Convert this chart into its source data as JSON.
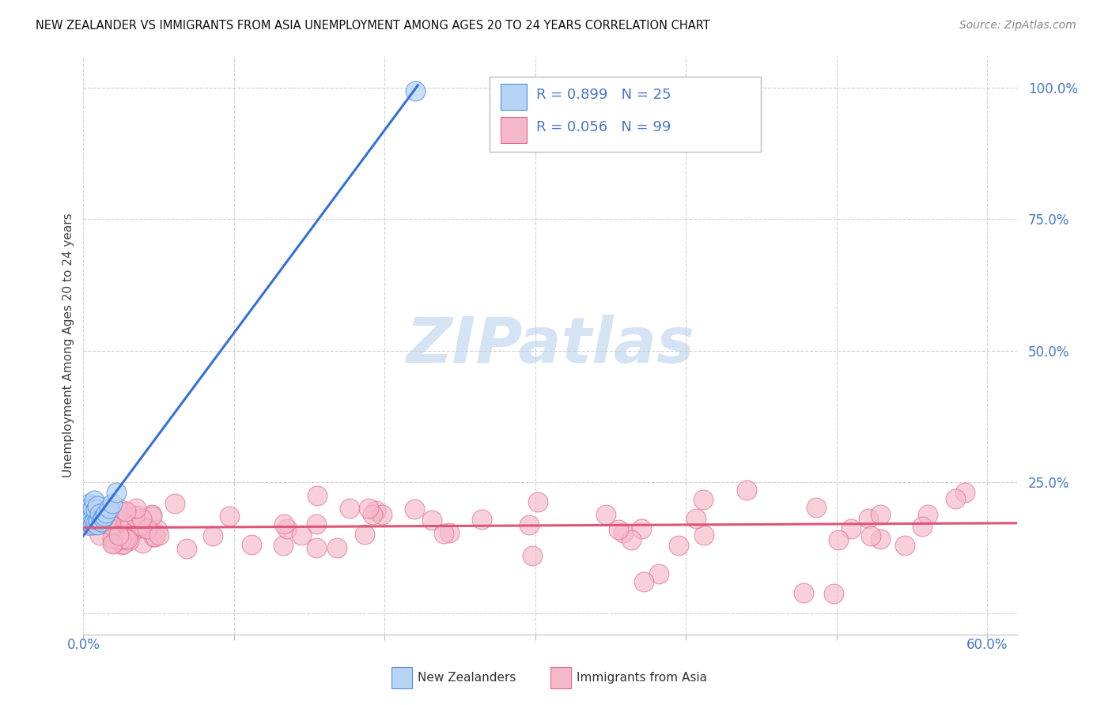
{
  "title": "NEW ZEALANDER VS IMMIGRANTS FROM ASIA UNEMPLOYMENT AMONG AGES 20 TO 24 YEARS CORRELATION CHART",
  "source": "Source: ZipAtlas.com",
  "ylabel": "Unemployment Among Ages 20 to 24 years",
  "xlim": [
    0.0,
    0.62
  ],
  "ylim": [
    -0.04,
    1.06
  ],
  "ytick_vals": [
    0.0,
    0.25,
    0.5,
    0.75,
    1.0
  ],
  "ytick_labels": [
    "",
    "25.0%",
    "50.0%",
    "75.0%",
    "100.0%"
  ],
  "xtick_vals": [
    0.0,
    0.1,
    0.2,
    0.3,
    0.4,
    0.5,
    0.6
  ],
  "color_nz_face": "#b8d4f5",
  "color_nz_edge": "#5090e0",
  "color_asia_face": "#f5b8ca",
  "color_asia_edge": "#e06888",
  "color_nz_line": "#3370dd",
  "color_asia_line": "#dd5577",
  "color_text_blue": "#4477cc",
  "color_grid": "#cccccc",
  "watermark_color": "#d4e4f5",
  "background_color": "#ffffff",
  "nz_line_x": [
    0.0,
    0.222
  ],
  "nz_line_y": [
    0.148,
    1.005
  ],
  "asia_line_x": [
    0.0,
    0.62
  ],
  "asia_line_y": [
    0.163,
    0.172
  ]
}
